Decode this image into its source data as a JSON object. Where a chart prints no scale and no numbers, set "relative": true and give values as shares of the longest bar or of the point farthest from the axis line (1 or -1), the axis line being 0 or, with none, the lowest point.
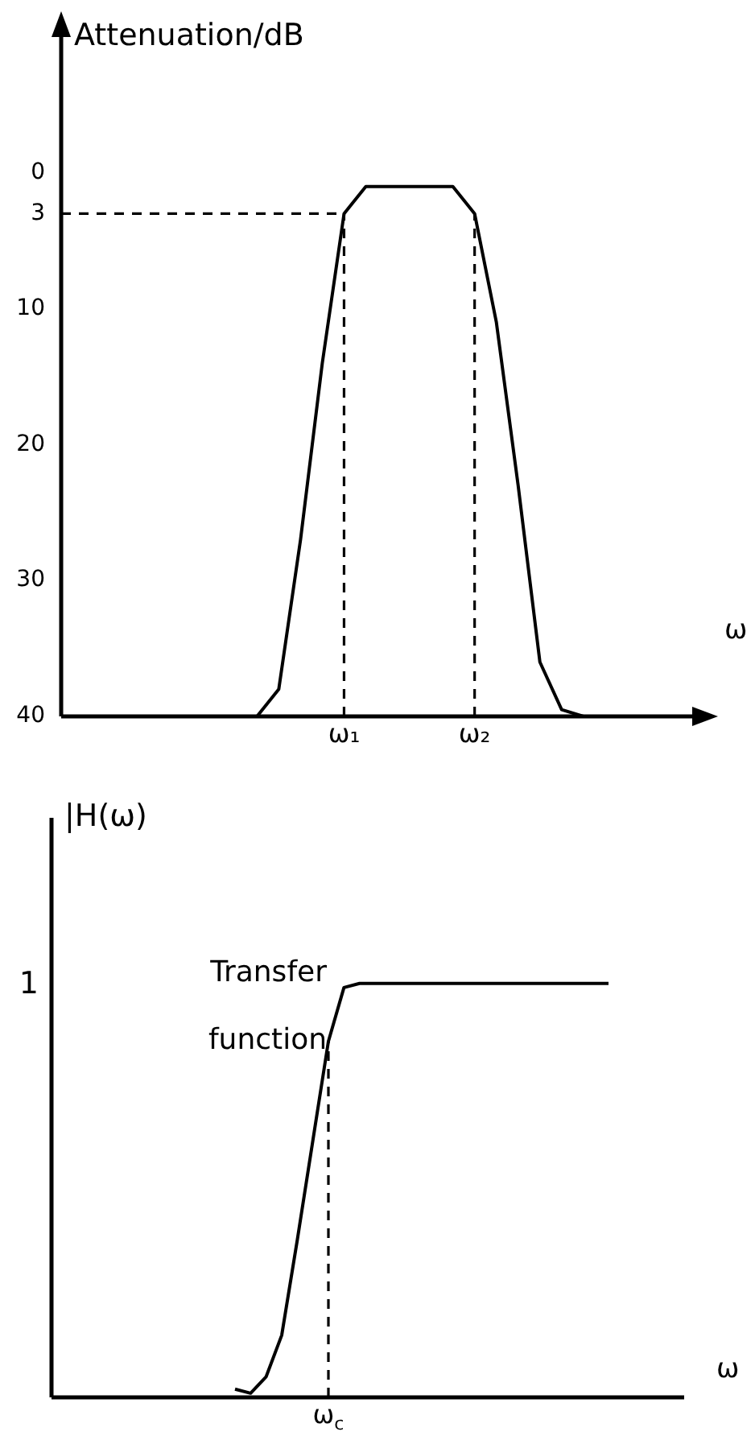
{
  "chart_data": [
    {
      "type": "line",
      "ylabel": "Attenuation/dB",
      "xlabel": "ω",
      "marker": "none",
      "ylim": [
        40,
        -10
      ],
      "yticks": [
        0,
        3,
        10,
        20,
        30,
        40
      ],
      "categories": [
        null,
        null,
        null,
        null,
        null,
        null,
        null,
        null,
        null,
        null,
        null,
        null,
        null,
        "ω₁",
        null,
        null,
        null,
        null,
        null,
        "ω₂",
        null,
        null,
        null,
        null,
        null,
        null,
        null,
        null,
        null,
        null
      ],
      "series": [
        {
          "color": "#000000",
          "values": [
            null,
            null,
            null,
            null,
            null,
            null,
            null,
            null,
            40,
            40,
            38,
            27,
            14,
            3,
            1,
            1,
            1,
            1,
            1,
            3,
            11,
            23,
            36,
            39.5,
            40,
            null,
            null,
            null,
            null,
            null
          ]
        }
      ],
      "ref_lines": [
        {
          "axis": "y",
          "value": 3,
          "color": "#000000",
          "line_style": "dashed"
        },
        {
          "axis": "x",
          "value": "ω₁",
          "color": "#000000",
          "line_style": "dashed"
        },
        {
          "axis": "x",
          "value": "ω₂",
          "color": "#000000",
          "line_style": "dashed"
        }
      ]
    },
    {
      "type": "line",
      "relative": true,
      "ylabel": "|H(ω)",
      "xlabel": "ω",
      "marker": "none",
      "categories": [
        null,
        null,
        null,
        null,
        null,
        null,
        null,
        null,
        null,
        null,
        null,
        null,
        null,
        null,
        null,
        null,
        null,
        null,
        null,
        null,
        null,
        null,
        null,
        null,
        null
      ],
      "annotations": [
        "1",
        "Transfer function"
      ],
      "series": [
        {
          "color": "#000000",
          "values": [
            0.02,
            0.01,
            0.05,
            0.15,
            0.38,
            0.62,
            0.86,
            0.99,
            1,
            1,
            1,
            1,
            1,
            1,
            1,
            1,
            1,
            1,
            1,
            1,
            1,
            1,
            1,
            1,
            1
          ]
        }
      ],
      "ref_lines": [
        {
          "axis": "x",
          "label": "ω$_{c}$",
          "color": "#000000",
          "line_style": "dashed"
        }
      ]
    }
  ]
}
